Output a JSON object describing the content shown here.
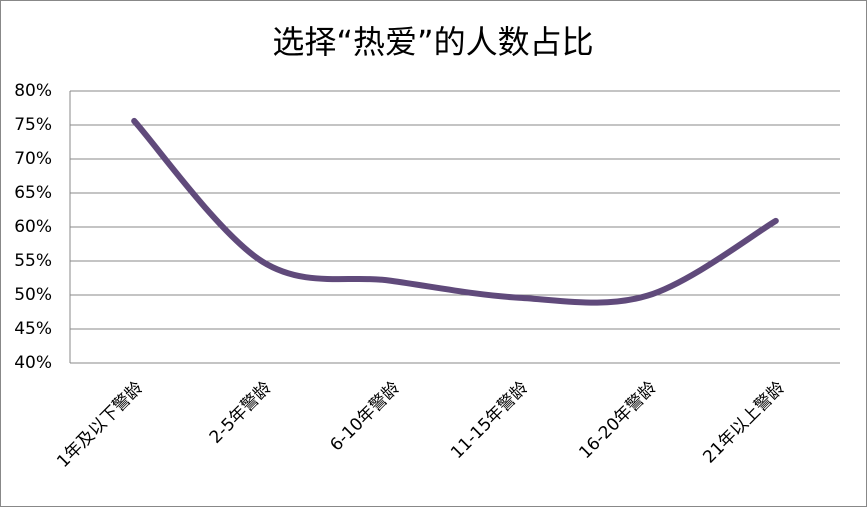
{
  "chart_data": {
    "type": "line",
    "title": "选择“热爱”的人数占比",
    "categories": [
      "1年及以下警龄",
      "2-5年警龄",
      "6-10年警龄",
      "11-15年警龄",
      "16-20年警龄",
      "21年以上警龄"
    ],
    "values": [
      75.6,
      54.9,
      52.1,
      49.6,
      49.9,
      60.9
    ],
    "color": "#604a7b",
    "ylim": [
      40,
      80
    ],
    "yticks": [
      {
        "value": 40,
        "label": "40%"
      },
      {
        "value": 45,
        "label": "45%"
      },
      {
        "value": 50,
        "label": "50%"
      },
      {
        "value": 55,
        "label": "55%"
      },
      {
        "value": 60,
        "label": "60%"
      },
      {
        "value": 65,
        "label": "65%"
      },
      {
        "value": 70,
        "label": "70%"
      },
      {
        "value": 75,
        "label": "75%"
      },
      {
        "value": 80,
        "label": "80%"
      }
    ],
    "grid": true,
    "smooth": true
  }
}
